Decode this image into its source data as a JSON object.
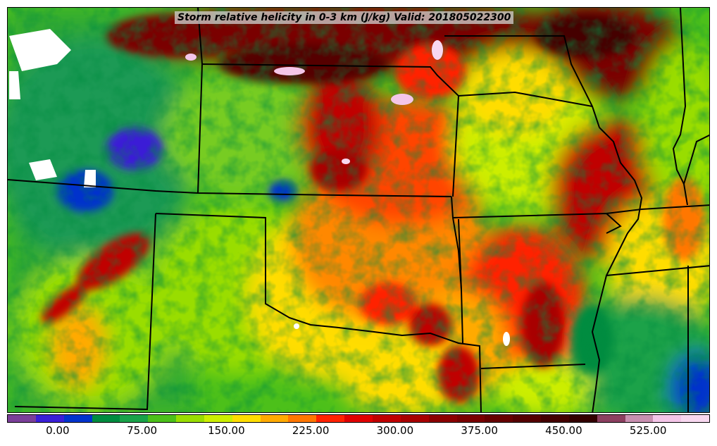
{
  "title": "Storm relative helicity in 0-3 km (J/kg) Valid: 201805022300",
  "colorbar": {
    "colors": [
      "#7b3f99",
      "#3a1fd6",
      "#0033cc",
      "#008c40",
      "#1aa24a",
      "#4cc01a",
      "#99dd00",
      "#ccee00",
      "#ffdd00",
      "#ffaa00",
      "#ff7700",
      "#ff2200",
      "#e00000",
      "#c00000",
      "#a80000",
      "#8c0000",
      "#7a0000",
      "#660000",
      "#550000",
      "#440000",
      "#330000",
      "#8c4060",
      "#c890b0",
      "#f4c6e8",
      "#f8d8f0"
    ],
    "tick_labels": [
      "0.00",
      "75.00",
      "150.00",
      "225.00",
      "300.00",
      "375.00",
      "450.00",
      "525.00"
    ],
    "tick_values": [
      0,
      75,
      150,
      225,
      300,
      375,
      450,
      525
    ],
    "range": [
      -45,
      580
    ]
  }
}
